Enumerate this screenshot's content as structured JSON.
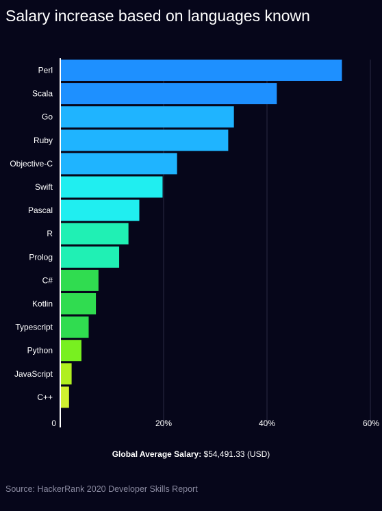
{
  "chart_data": {
    "type": "bar",
    "orientation": "horizontal",
    "title": "Salary increase based on languages known",
    "categories": [
      "Perl",
      "Scala",
      "Go",
      "Ruby",
      "Objective-C",
      "Swift",
      "Pascal",
      "R",
      "Prolog",
      "C#",
      "Kotlin",
      "Typescript",
      "Python",
      "JavaScript",
      "C++"
    ],
    "values": [
      54.5,
      41.9,
      33.6,
      32.5,
      22.6,
      19.8,
      15.3,
      13.2,
      11.4,
      7.4,
      6.9,
      5.5,
      4.1,
      2.2,
      1.7
    ],
    "colors": [
      "#1e90ff",
      "#1e90ff",
      "#1fb4ff",
      "#1fb4ff",
      "#1fb4ff",
      "#20eef0",
      "#20eef0",
      "#20f0b4",
      "#20f0b4",
      "#30dc50",
      "#30dc50",
      "#30dc50",
      "#78f020",
      "#b0ef20",
      "#d0f030"
    ],
    "xlim": [
      0,
      60
    ],
    "xticks": [
      {
        "value": 0,
        "label": "0"
      },
      {
        "value": 20,
        "label": "20%"
      },
      {
        "value": 40,
        "label": "40%"
      },
      {
        "value": 60,
        "label": "60%"
      }
    ],
    "grid": true
  },
  "footnote": {
    "label": "Global Average Salary:",
    "value": "$54,491.33 (USD)"
  },
  "source": "Source: HackerRank 2020 Developer Skills Report"
}
